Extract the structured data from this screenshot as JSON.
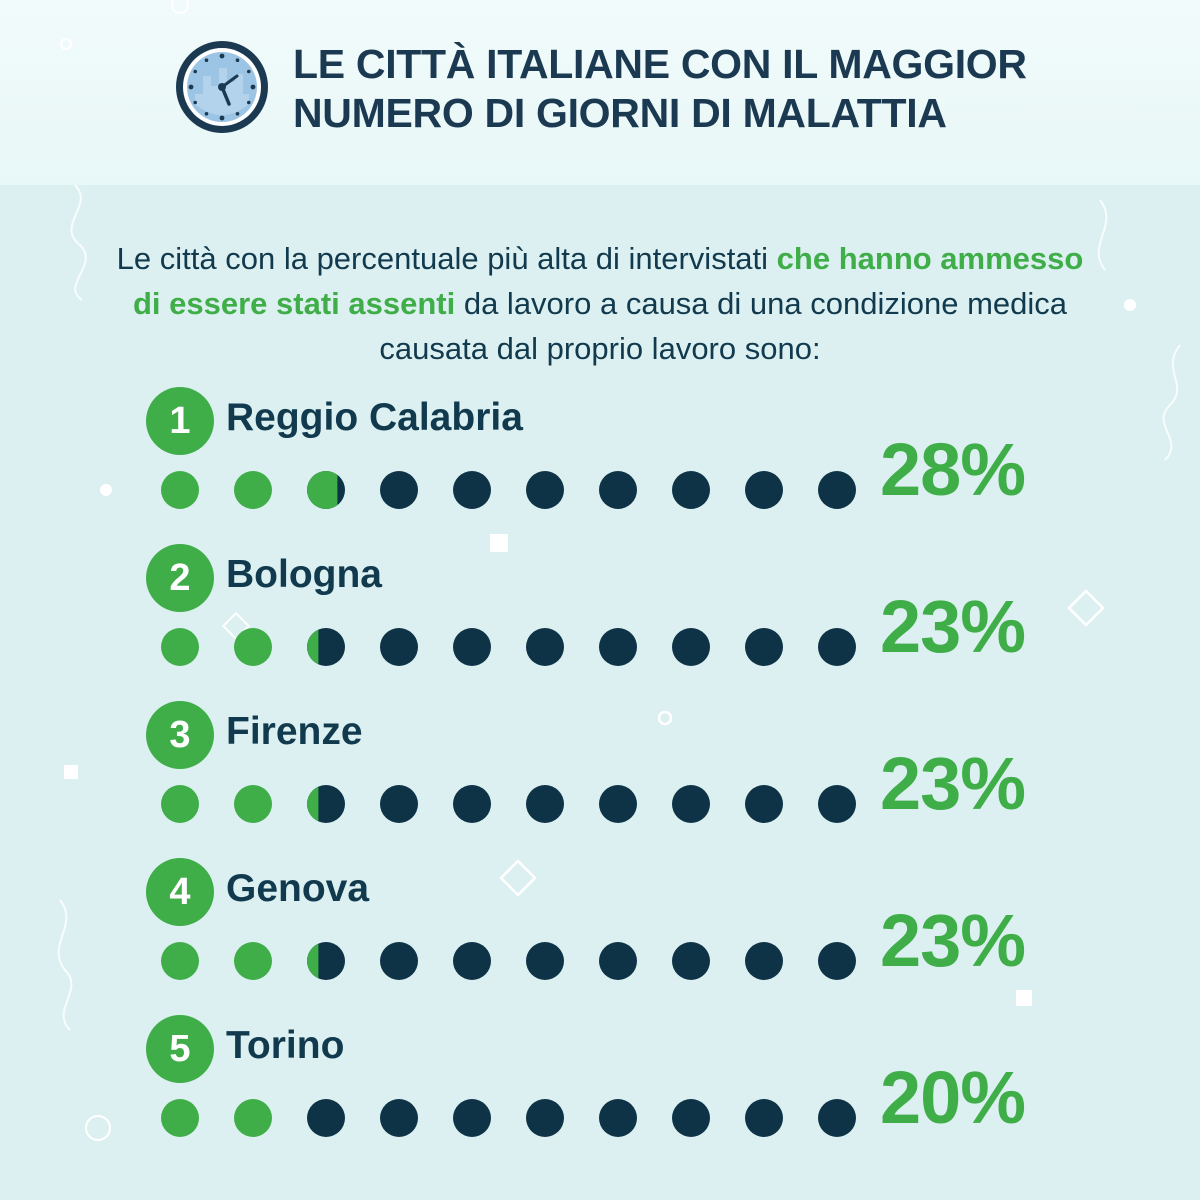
{
  "header": {
    "title_line1": "LE CITTÀ ITALIANE CON IL MAGGIOR",
    "title_line2": "NUMERO DI GIORNI DI MALATTIA",
    "icon": "clock-icon"
  },
  "intro": {
    "part1": "Le città con la percentuale più alta di intervistati ",
    "highlight": "che hanno ammesso di essere stati assenti",
    "part2": " da lavoro a causa di una condizione medica causata dal proprio lavoro sono:"
  },
  "colors": {
    "accent": "#3fae49",
    "dark": "#0e3347",
    "text": "#123a4e",
    "background": "#dcf0f1"
  },
  "chart_data": {
    "type": "bar",
    "title": "LE CITTÀ ITALIANE CON IL MAGGIOR NUMERO DI GIORNI DI MALATTIA",
    "unit": "%",
    "dots_total": 10,
    "categories": [
      "Reggio Calabria",
      "Bologna",
      "Firenze",
      "Genova",
      "Torino"
    ],
    "values": [
      28,
      23,
      23,
      23,
      20
    ],
    "ranks": [
      "1",
      "2",
      "3",
      "4",
      "5"
    ],
    "labels": [
      "28%",
      "23%",
      "23%",
      "23%",
      "20%"
    ]
  }
}
